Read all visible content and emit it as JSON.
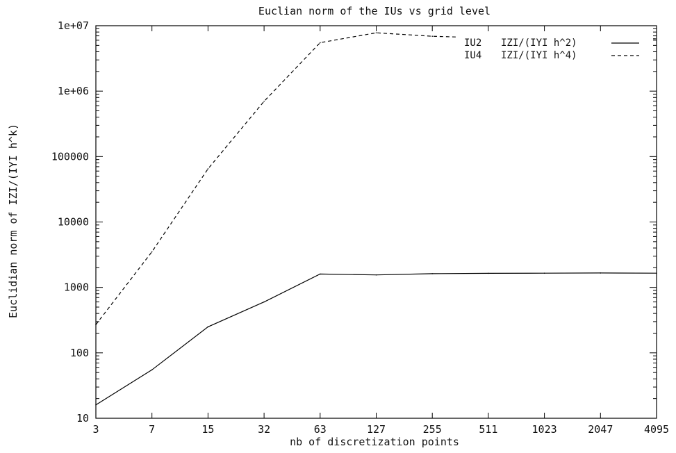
{
  "chart_data": {
    "type": "line",
    "title": "Euclian norm of the IUs vs grid level",
    "xlabel": "nb of discretization points",
    "ylabel": "Euclidian norm of IZI/(IYI h^k)",
    "yscale": "log",
    "ylim": [
      10,
      10000000
    ],
    "x_categories": [
      "3",
      "7",
      "15",
      "32",
      "63",
      "127",
      "255",
      "511",
      "1023",
      "2047",
      "4095"
    ],
    "y_tick_labels": [
      "10",
      "100",
      "1000",
      "10000",
      "100000",
      "1e+06",
      "1e+07"
    ],
    "y_tick_values": [
      10,
      100,
      1000,
      10000,
      100000,
      1000000,
      10000000
    ],
    "grid": false,
    "legend_position": "top-right",
    "series": [
      {
        "name": "IU2",
        "legend_label": "IZI/(IYI h^2)",
        "style": "solid",
        "color": "#000000",
        "values": [
          16,
          55,
          250,
          600,
          1600,
          1550,
          1620,
          1640,
          1650,
          1660,
          1650
        ]
      },
      {
        "name": "IU4",
        "legend_label": "IZI/(IYI h^4)",
        "style": "dashed",
        "color": "#000000",
        "values": [
          270,
          3500,
          65000,
          700000,
          5500000,
          7800000,
          6900000,
          6500000,
          6400000,
          6300000,
          6300000
        ]
      }
    ]
  }
}
